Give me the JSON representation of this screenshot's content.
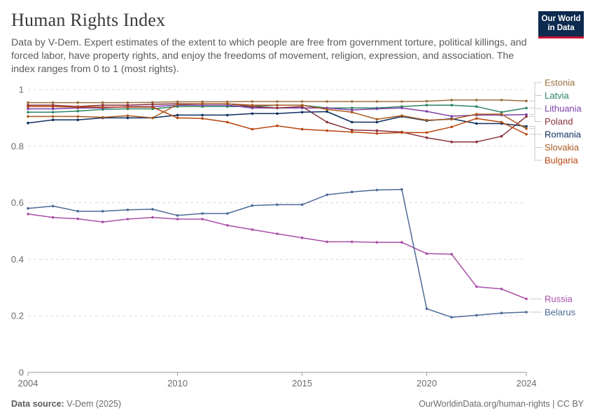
{
  "header": {
    "title": "Human Rights Index",
    "subtitle": "Data by V-Dem. Expert estimates of the extent to which people are free from government torture, political killings, and forced labor, have property rights, and enjoy the freedoms of movement, religion, expression, and association. The index ranges from 0 to 1 (most rights).",
    "logo_line1": "Our World",
    "logo_line2": "in Data",
    "logo_color": "#0d2a4f",
    "logo_accent": "#c8102e"
  },
  "footer": {
    "source_label": "Data source:",
    "source_value": "V-Dem (2025)",
    "url": "OurWorldinData.org/human-rights | CC BY"
  },
  "chart_data": {
    "type": "line",
    "title": "Human Rights Index",
    "xlabel": "",
    "ylabel": "",
    "xlim": [
      2004,
      2024
    ],
    "ylim": [
      0,
      1
    ],
    "y_ticks": [
      0,
      0.2,
      0.4,
      0.6,
      0.8,
      1
    ],
    "y_tick_labels": [
      "0",
      "0.2",
      "0.4",
      "0.6",
      "0.8",
      "1"
    ],
    "x_ticks": [
      2004,
      2010,
      2015,
      2020,
      2024
    ],
    "x_tick_labels": [
      "2004",
      "2010",
      "2015",
      "2020",
      "2024"
    ],
    "grid": "horizontal dashed",
    "legend": "right-end labels",
    "x": [
      2004,
      2005,
      2006,
      2007,
      2008,
      2009,
      2010,
      2011,
      2012,
      2013,
      2014,
      2015,
      2016,
      2017,
      2018,
      2019,
      2020,
      2021,
      2022,
      2023,
      2024
    ],
    "series": [
      {
        "name": "Estonia",
        "color": "#9a7040",
        "values": [
          0.954,
          0.954,
          0.954,
          0.954,
          0.954,
          0.955,
          0.957,
          0.957,
          0.957,
          0.958,
          0.958,
          0.958,
          0.958,
          0.958,
          0.958,
          0.958,
          0.959,
          0.963,
          0.963,
          0.963,
          0.96
        ]
      },
      {
        "name": "Latvia",
        "color": "#2c8465",
        "values": [
          0.92,
          0.92,
          0.924,
          0.93,
          0.932,
          0.932,
          0.94,
          0.94,
          0.94,
          0.94,
          0.945,
          0.945,
          0.935,
          0.935,
          0.935,
          0.94,
          0.945,
          0.945,
          0.94,
          0.92,
          0.935
        ]
      },
      {
        "name": "Lithuania",
        "color": "#7b3fa8",
        "values": [
          0.932,
          0.932,
          0.935,
          0.935,
          0.94,
          0.94,
          0.945,
          0.945,
          0.945,
          0.935,
          0.935,
          0.935,
          0.935,
          0.928,
          0.932,
          0.935,
          0.923,
          0.906,
          0.91,
          0.91,
          0.912
        ]
      },
      {
        "name": "Poland",
        "color": "#883039",
        "values": [
          0.945,
          0.945,
          0.94,
          0.945,
          0.945,
          0.948,
          0.95,
          0.95,
          0.95,
          0.94,
          0.935,
          0.94,
          0.885,
          0.857,
          0.855,
          0.85,
          0.83,
          0.815,
          0.815,
          0.835,
          0.905
        ]
      },
      {
        "name": "Romania",
        "color": "#0f2f5e",
        "values": [
          0.882,
          0.893,
          0.893,
          0.9,
          0.9,
          0.9,
          0.91,
          0.91,
          0.91,
          0.915,
          0.915,
          0.92,
          0.922,
          0.885,
          0.885,
          0.905,
          0.89,
          0.897,
          0.88,
          0.88,
          0.87
        ]
      },
      {
        "name": "Slovakia",
        "color": "#a95a1f",
        "values": [
          0.905,
          0.905,
          0.905,
          0.902,
          0.908,
          0.9,
          0.948,
          0.95,
          0.95,
          0.945,
          0.945,
          0.945,
          0.93,
          0.92,
          0.895,
          0.908,
          0.892,
          0.895,
          0.913,
          0.913,
          0.862
        ]
      },
      {
        "name": "Bulgaria",
        "color": "#b8460f",
        "values": [
          0.94,
          0.94,
          0.938,
          0.938,
          0.938,
          0.938,
          0.9,
          0.898,
          0.885,
          0.86,
          0.872,
          0.86,
          0.855,
          0.85,
          0.845,
          0.848,
          0.848,
          0.868,
          0.898,
          0.885,
          0.842
        ]
      },
      {
        "name": "Russia",
        "color": "#a84ea8",
        "values": [
          0.56,
          0.548,
          0.543,
          0.532,
          0.542,
          0.548,
          0.542,
          0.542,
          0.52,
          0.505,
          0.49,
          0.476,
          0.462,
          0.462,
          0.46,
          0.46,
          0.42,
          0.418,
          0.303,
          0.295,
          0.26
        ]
      },
      {
        "name": "Belarus",
        "color": "#4c6a96",
        "values": [
          0.58,
          0.588,
          0.57,
          0.57,
          0.575,
          0.577,
          0.555,
          0.562,
          0.562,
          0.59,
          0.593,
          0.593,
          0.628,
          0.638,
          0.645,
          0.647,
          0.225,
          0.195,
          0.202,
          0.21,
          0.213
        ]
      }
    ]
  }
}
